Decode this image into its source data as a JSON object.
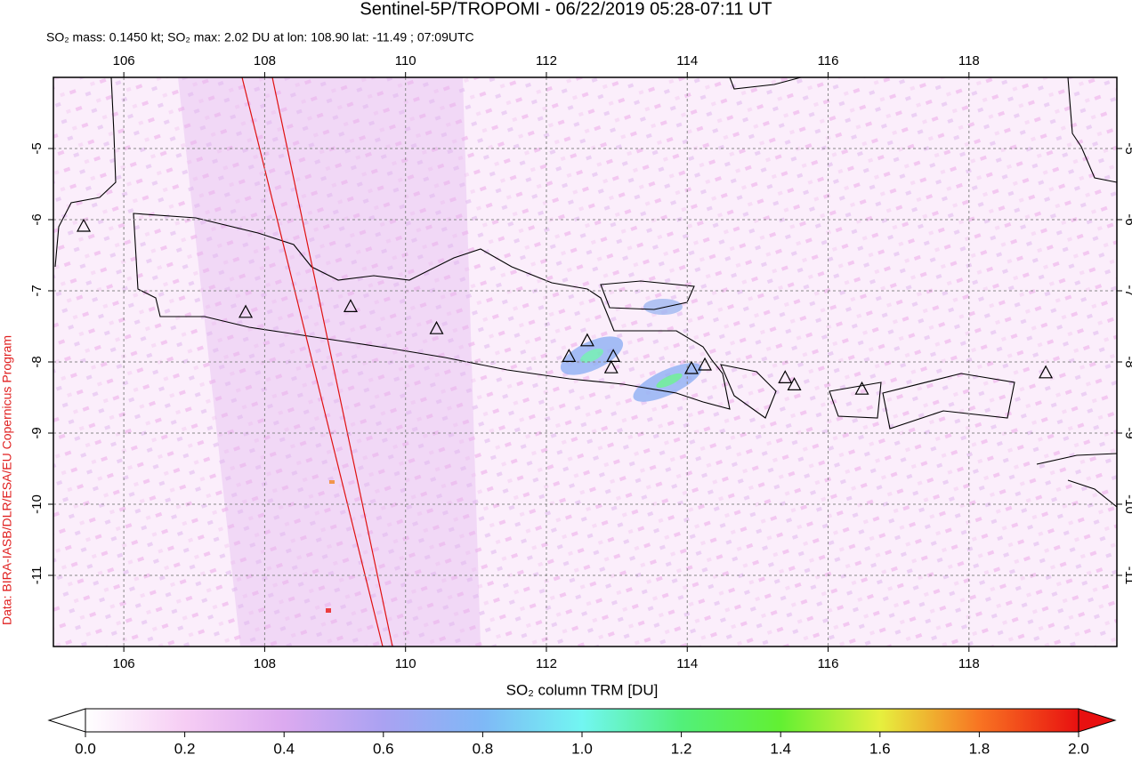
{
  "chart_data": {
    "type": "map",
    "title": "Sentinel-5P/TROPOMI - 06/22/2019 05:28-07:11 UT",
    "subtitle": "SO₂ mass: 0.1450 kt; SO₂ max: 2.02 DU at lon: 108.90 lat: -11.49 ; 07:09UTC",
    "credit": "Data: BIRA-IASB/DLR/ESA/EU Copernicus Program",
    "xlim": [
      105,
      120.1
    ],
    "ylim": [
      -12,
      -4
    ],
    "xticks": [
      106,
      108,
      110,
      112,
      114,
      116,
      118
    ],
    "yticks": [
      -5,
      -6,
      -7,
      -8,
      -9,
      -10,
      -11
    ],
    "grid": true,
    "volcanoes": [
      {
        "lon": 105.43,
        "lat": -6.1
      },
      {
        "lon": 107.73,
        "lat": -7.31
      },
      {
        "lon": 109.22,
        "lat": -7.23
      },
      {
        "lon": 110.44,
        "lat": -7.54
      },
      {
        "lon": 112.32,
        "lat": -7.93
      },
      {
        "lon": 112.58,
        "lat": -7.71
      },
      {
        "lon": 112.95,
        "lat": -7.93
      },
      {
        "lon": 112.92,
        "lat": -8.09
      },
      {
        "lon": 114.06,
        "lat": -8.1
      },
      {
        "lon": 114.25,
        "lat": -8.05
      },
      {
        "lon": 115.39,
        "lat": -8.23
      },
      {
        "lon": 115.52,
        "lat": -8.33
      },
      {
        "lon": 116.48,
        "lat": -8.39
      },
      {
        "lon": 119.09,
        "lat": -8.16
      }
    ],
    "colorbar": {
      "label": "SO₂ column TRM [DU]",
      "lim": [
        0,
        2
      ],
      "ticks": [
        {
          "value": 0,
          "label": "0.0"
        },
        0.2,
        0.4,
        0.6,
        0.8,
        {
          "value": 1,
          "label": "1.0"
        },
        1.2,
        1.4,
        1.6,
        1.8,
        {
          "value": 2,
          "label": "2.0"
        }
      ],
      "colors": [
        "#ffffff",
        "#f6cdf4",
        "#dcaaf0",
        "#aaa2f2",
        "#7fb8f6",
        "#72f6f2",
        "#52f07a",
        "#62f032",
        "#e6f03e",
        "#f87422",
        "#e81010"
      ]
    }
  }
}
